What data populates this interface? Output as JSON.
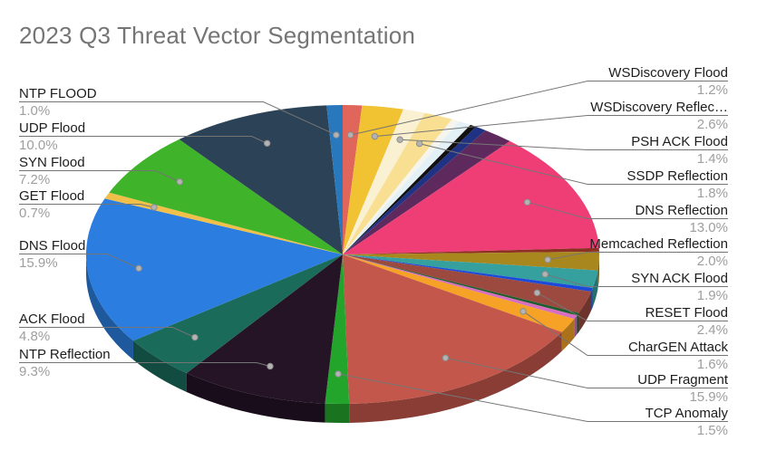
{
  "chart_data": {
    "type": "pie",
    "style": "3d",
    "title": "2023 Q3 Threat Vector Segmentation",
    "legend_position": "labeled-callouts",
    "total_display": "percent",
    "colors": {
      "title_text": "#757575",
      "label_text": "#1c1c1c",
      "percent_text": "#9e9e9e",
      "leader_line": "#757575"
    },
    "segments": [
      {
        "label": "WSDiscovery Flood",
        "value": 1.2,
        "display": "1.2%",
        "color": "#e0665c",
        "labeled": true
      },
      {
        "label": "WSDiscovery Reflec…",
        "value": 2.6,
        "display": "2.6%",
        "color": "#f1c232",
        "labeled": true
      },
      {
        "label": "PSH ACK Flood",
        "value": 1.4,
        "display": "1.4%",
        "color": "#faf0d2",
        "labeled": true
      },
      {
        "label": "SSDP Reflection",
        "value": 1.8,
        "display": "1.8%",
        "color": "#f8df92",
        "labeled": true
      },
      {
        "label": "",
        "value": 0.5,
        "display": "",
        "color": "#f5f5ee",
        "labeled": false
      },
      {
        "label": "",
        "value": 0.8,
        "display": "",
        "color": "#e3f1f7",
        "labeled": false
      },
      {
        "label": "",
        "value": 0.4,
        "display": "",
        "color": "#111111",
        "labeled": false
      },
      {
        "label": "",
        "value": 0.7,
        "display": "",
        "color": "#1f3284",
        "labeled": false
      },
      {
        "label": "",
        "value": 1.9,
        "display": "",
        "color": "#5e2a5e",
        "labeled": false
      },
      {
        "label": "DNS Reflection",
        "value": 13.0,
        "display": "13.0%",
        "color": "#ef3e76",
        "labeled": true
      },
      {
        "label": "",
        "value": 0.4,
        "display": "",
        "color": "#8e2f24",
        "labeled": false
      },
      {
        "label": "Memcached Reflection",
        "value": 2.0,
        "display": "2.0%",
        "color": "#a8871f",
        "labeled": true
      },
      {
        "label": "SYN ACK Flood",
        "value": 1.9,
        "display": "1.9%",
        "color": "#35a09e",
        "labeled": true
      },
      {
        "label": "",
        "value": 0.4,
        "display": "",
        "color": "#1c49d8",
        "labeled": false
      },
      {
        "label": "RESET Flood",
        "value": 2.4,
        "display": "2.4%",
        "color": "#9c4a3f",
        "labeled": true
      },
      {
        "label": "",
        "value": 0.3,
        "display": "",
        "color": "#1e5e2e",
        "labeled": false
      },
      {
        "label": "",
        "value": 0.4,
        "display": "",
        "color": "#d86ec0",
        "labeled": false
      },
      {
        "label": "CharGEN Attack",
        "value": 1.6,
        "display": "1.6%",
        "color": "#f5a227",
        "labeled": true
      },
      {
        "label": "UDP Fragment",
        "value": 15.9,
        "display": "15.9%",
        "color": "#c4574b",
        "labeled": true
      },
      {
        "label": "TCP Anomaly",
        "value": 1.5,
        "display": "1.5%",
        "color": "#23a52c",
        "labeled": true
      },
      {
        "label": "NTP Reflection",
        "value": 9.3,
        "display": "9.3%",
        "color": "#251326",
        "labeled": true
      },
      {
        "label": "ACK Flood",
        "value": 4.8,
        "display": "4.8%",
        "color": "#1a6b5a",
        "labeled": true
      },
      {
        "label": "DNS Flood",
        "value": 15.9,
        "display": "15.9%",
        "color": "#2b7de0",
        "labeled": true
      },
      {
        "label": "GET Flood",
        "value": 0.7,
        "display": "0.7%",
        "color": "#f0c04a",
        "labeled": true
      },
      {
        "label": "SYN Flood",
        "value": 7.2,
        "display": "7.2%",
        "color": "#3fb32a",
        "labeled": true
      },
      {
        "label": "UDP Flood",
        "value": 10.0,
        "display": "10.0%",
        "color": "#2c4257",
        "labeled": true
      },
      {
        "label": "NTP FLOOD",
        "value": 1.0,
        "display": "1.0%",
        "color": "#2878be",
        "labeled": true
      }
    ]
  }
}
